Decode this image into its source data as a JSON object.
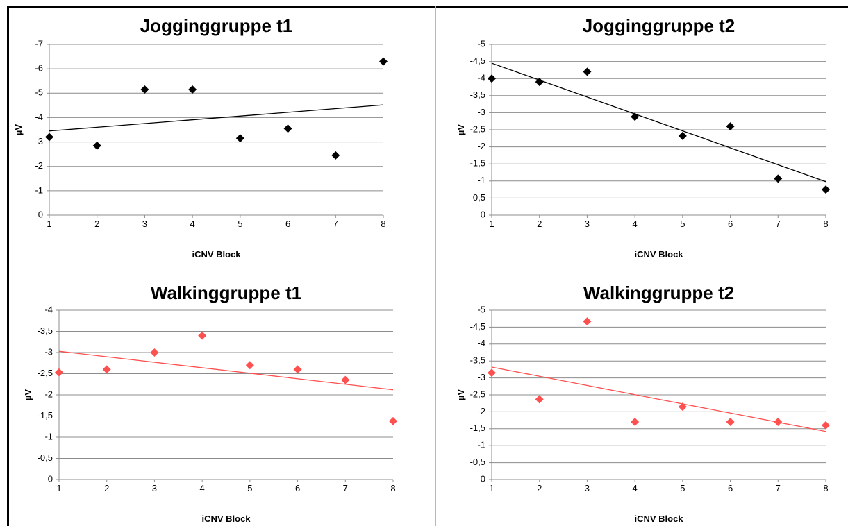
{
  "chart_data": [
    {
      "type": "scatter",
      "title": "Jogginggruppe t1",
      "xlabel": "iCNV Block",
      "ylabel": "µV",
      "xlim": [
        1,
        8
      ],
      "ylim": [
        0,
        -7
      ],
      "y_reversed": true,
      "yticks": [
        "0",
        "-1",
        "-2",
        "-3",
        "-4",
        "-5",
        "-6",
        "-7"
      ],
      "xticks": [
        "1",
        "2",
        "3",
        "4",
        "5",
        "6",
        "7",
        "8"
      ],
      "grid": "horizontal",
      "series": [
        {
          "color": "#000000",
          "marker": "diamond",
          "x": [
            1,
            2,
            3,
            4,
            5,
            6,
            7,
            8
          ],
          "y": [
            -3.2,
            -2.85,
            -5.15,
            -5.15,
            -3.15,
            -3.55,
            -2.45,
            -6.3
          ],
          "trendline": [
            [
              1,
              -3.45
            ],
            [
              8,
              -4.52
            ]
          ]
        }
      ]
    },
    {
      "type": "scatter",
      "title": "Jogginggruppe t2",
      "xlabel": "iCNV Block",
      "ylabel": "µV",
      "xlim": [
        1,
        8
      ],
      "ylim": [
        0,
        -5
      ],
      "y_reversed": true,
      "yticks": [
        "0",
        "-0,5",
        "-1",
        "-1,5",
        "-2",
        "-2,5",
        "-3",
        "-3,5",
        "-4",
        "-4,5",
        "-5"
      ],
      "xticks": [
        "1",
        "2",
        "3",
        "4",
        "5",
        "6",
        "7",
        "8"
      ],
      "grid": "horizontal",
      "series": [
        {
          "color": "#000000",
          "marker": "diamond",
          "x": [
            1,
            2,
            3,
            4,
            5,
            6,
            7,
            8
          ],
          "y": [
            -4.0,
            -3.9,
            -4.2,
            -2.88,
            -2.32,
            -2.6,
            -1.07,
            -0.75
          ],
          "trendline": [
            [
              1,
              -4.45
            ],
            [
              8,
              -0.98
            ]
          ]
        }
      ]
    },
    {
      "type": "scatter",
      "title": "Walkinggruppe t1",
      "xlabel": "iCNV Block",
      "ylabel": "µV",
      "xlim": [
        1,
        8
      ],
      "ylim": [
        0,
        -4
      ],
      "y_reversed": true,
      "yticks": [
        "0",
        "-0,5",
        "-1",
        "-1,5",
        "-2",
        "-2,5",
        "-3",
        "-3,5",
        "-4"
      ],
      "xticks": [
        "1",
        "2",
        "3",
        "4",
        "5",
        "6",
        "7",
        "8"
      ],
      "grid": "horizontal",
      "series": [
        {
          "color": "#ff5050",
          "marker": "diamond",
          "x": [
            1,
            2,
            3,
            4,
            5,
            6,
            7,
            8
          ],
          "y": [
            -2.53,
            -2.6,
            -3.0,
            -3.4,
            -2.7,
            -2.6,
            -2.35,
            -1.38
          ],
          "trendline": [
            [
              1,
              -3.03
            ],
            [
              8,
              -2.12
            ]
          ]
        }
      ]
    },
    {
      "type": "scatter",
      "title": "Walkinggruppe t2",
      "xlabel": "iCNV Block",
      "ylabel": "µV",
      "xlim": [
        1,
        8
      ],
      "ylim": [
        0,
        -5
      ],
      "y_reversed": true,
      "yticks": [
        "0",
        "-0,5",
        "-1",
        "-1,5",
        "-2",
        "-2,5",
        "-3",
        "-3,5",
        "-4",
        "-4,5",
        "-5"
      ],
      "xticks": [
        "1",
        "2",
        "3",
        "4",
        "5",
        "6",
        "7",
        "8"
      ],
      "grid": "horizontal",
      "series": [
        {
          "color": "#ff5050",
          "marker": "diamond",
          "x": [
            1,
            2,
            3,
            4,
            5,
            6,
            7,
            8
          ],
          "y": [
            -3.15,
            -2.37,
            -4.67,
            -1.7,
            -2.15,
            -1.7,
            -1.7,
            -1.6
          ],
          "trendline": [
            [
              1,
              -3.32
            ],
            [
              8,
              -1.42
            ]
          ]
        }
      ]
    }
  ]
}
